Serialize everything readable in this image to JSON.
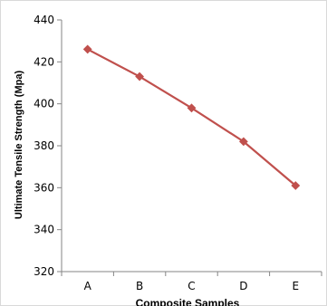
{
  "chart_data": {
    "type": "line",
    "title": "",
    "xlabel": "Composite Samples",
    "ylabel": "Ultimate Tensile Strength (Mpa)",
    "categories": [
      "A",
      "B",
      "C",
      "D",
      "E"
    ],
    "series": [
      {
        "values": [
          426,
          413,
          398,
          382,
          361
        ]
      }
    ],
    "ylim": [
      320,
      440
    ],
    "yticks": [
      320,
      340,
      360,
      380,
      400,
      420,
      440
    ],
    "grid": false,
    "legend": "none",
    "line_color": "#c0504d",
    "marker": "diamond"
  }
}
